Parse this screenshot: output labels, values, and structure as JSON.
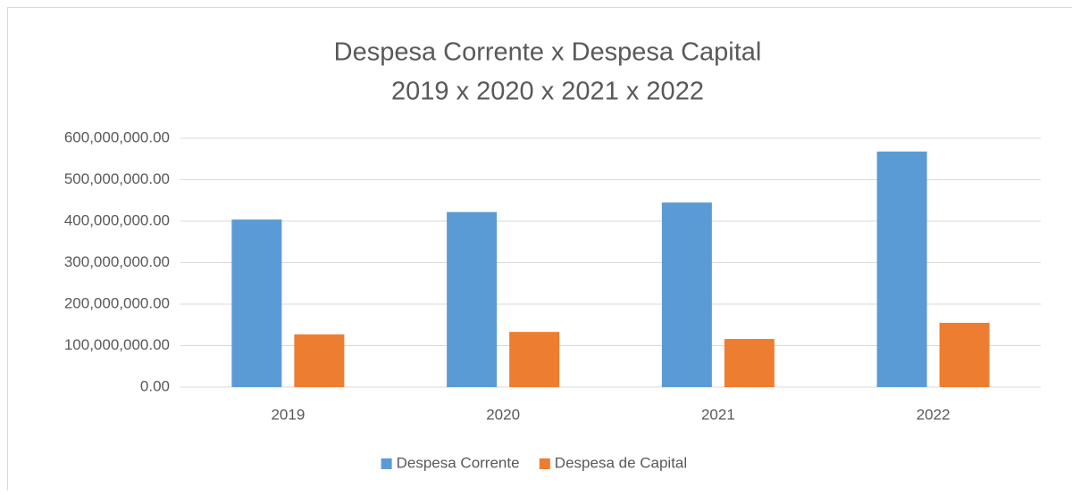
{
  "chart_data": {
    "type": "bar",
    "title": "Despesa Corrente x Despesa Capital",
    "subtitle": "2019 x 2020 x 2021 x 2022",
    "categories": [
      "2019",
      "2020",
      "2021",
      "2022"
    ],
    "series": [
      {
        "name": "Despesa Corrente",
        "color": "#5b9bd5",
        "values": [
          404000000,
          422000000,
          445000000,
          568000000
        ]
      },
      {
        "name": "Despesa de Capital",
        "color": "#ed7d31",
        "values": [
          127000000,
          133000000,
          116000000,
          155000000
        ]
      }
    ],
    "ylim": [
      0,
      600000000
    ],
    "yticks": [
      {
        "value": 0,
        "label": "0.00"
      },
      {
        "value": 100000000,
        "label": "100,000,000.00"
      },
      {
        "value": 200000000,
        "label": "200,000,000.00"
      },
      {
        "value": 300000000,
        "label": "300,000,000.00"
      },
      {
        "value": 400000000,
        "label": "400,000,000.00"
      },
      {
        "value": 500000000,
        "label": "500,000,000.00"
      },
      {
        "value": 600000000,
        "label": "600,000,000.00"
      }
    ],
    "grid": true,
    "legend": "bottom"
  }
}
